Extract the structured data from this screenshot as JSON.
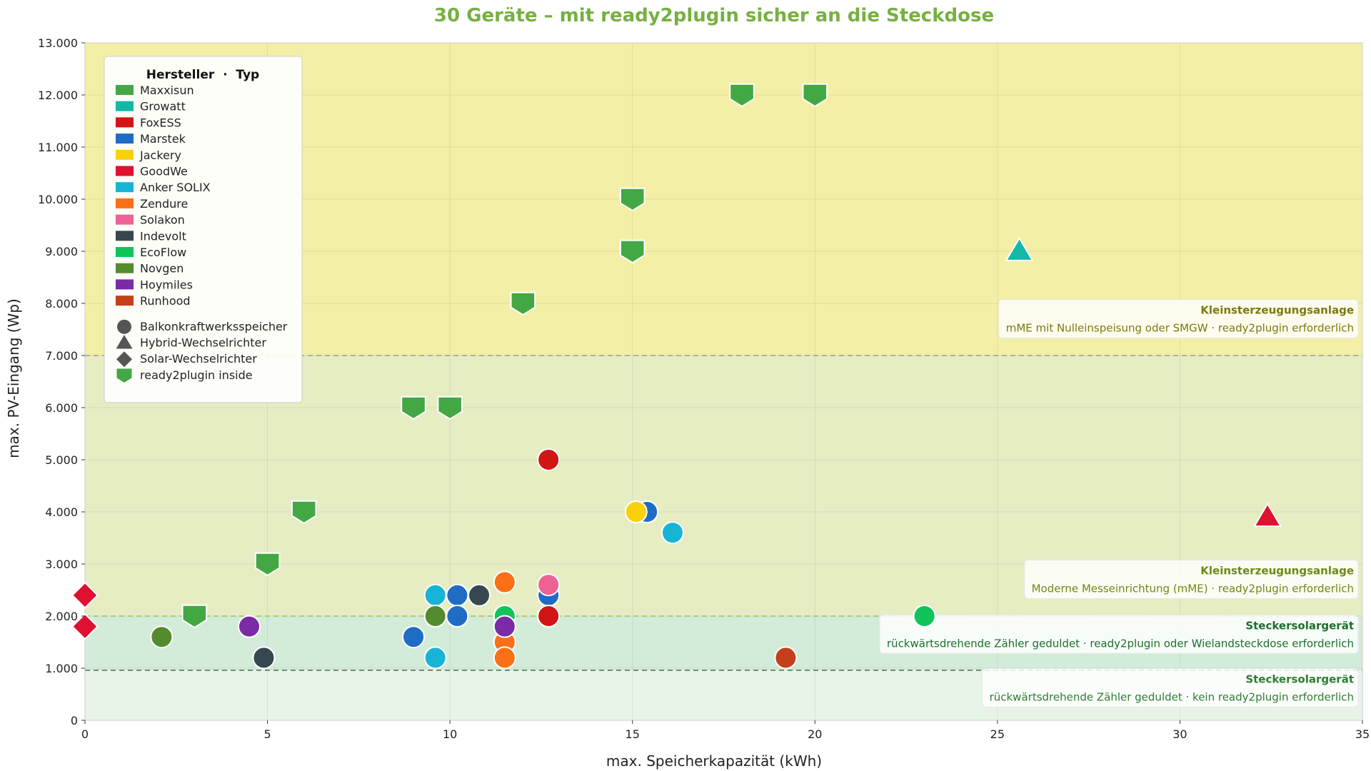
{
  "chart_data": {
    "type": "scatter",
    "title": "30 Geräte – mit ready2plugin sicher an die Steckdose",
    "xlabel": "max. Speicherkapazität (kWh)",
    "ylabel": "max. PV-Eingang (Wp)",
    "xlim": [
      0,
      35
    ],
    "ylim": [
      0,
      13000
    ],
    "xticks": [
      0,
      5,
      10,
      15,
      20,
      25,
      30,
      35
    ],
    "xtick_labels": [
      "0",
      "5",
      "10",
      "15",
      "20",
      "25",
      "30",
      "35"
    ],
    "yticks": [
      0,
      1000,
      2000,
      3000,
      4000,
      5000,
      6000,
      7000,
      8000,
      9000,
      10000,
      11000,
      12000,
      13000
    ],
    "ytick_labels": [
      "0",
      "1.000",
      "2.000",
      "3.000",
      "4.000",
      "5.000",
      "6.000",
      "7.000",
      "8.000",
      "9.000",
      "10.000",
      "11.000",
      "12.000",
      "13.000"
    ],
    "grid": true,
    "colors": {
      "title": "#76b041",
      "zone_top": "#f3efa6",
      "zone_upper": "#e6edc3",
      "zone_mid": "#d3ecd9",
      "zone_bottom": "#e8f4e8",
      "line_7000": "#999999",
      "line_2000": "#9cbf4f",
      "line_960": "#4d6b4d",
      "text_olive": "#7a7a0e",
      "text_green": "#2e7d32",
      "text_dark_green": "#1e6e2e"
    },
    "zones": [
      {
        "from": 7000,
        "to": 13000,
        "color": "#f3efa6"
      },
      {
        "from": 2000,
        "to": 7000,
        "color": "#e6edc3"
      },
      {
        "from": 960,
        "to": 2000,
        "color": "#d3ecd9"
      },
      {
        "from": 0,
        "to": 960,
        "color": "#e8f4e8"
      }
    ],
    "threshold_lines": [
      {
        "y": 7000,
        "color": "#999999"
      },
      {
        "y": 2000,
        "color": "#9cbf4f"
      },
      {
        "y": 960,
        "color": "#4d6b4d"
      }
    ],
    "annotations": [
      {
        "title": "Kleinsterzeugungsanlage",
        "text": "mME mit Nulleinspeisung oder SMGW · ready2plugin erforderlich",
        "anchor_y": 7800,
        "color": "#7a7a0e"
      },
      {
        "title": "Kleinsterzeugungsanlage",
        "text": "Moderne Messeinrichtung (mME) · ready2plugin erforderlich",
        "anchor_y": 2800,
        "color": "#6b8a14"
      },
      {
        "title": "Steckersolargerät",
        "text": "rückwärtsdrehende Zähler geduldet · ready2plugin oder Wielandsteckdose erforderlich",
        "anchor_y": 1750,
        "color": "#1e6e2e"
      },
      {
        "title": "Steckersolargerät",
        "text": "rückwärtsdrehende Zähler geduldet · kein ready2plugin erforderlich",
        "anchor_y": 720,
        "color": "#2e7d32"
      }
    ],
    "legend": {
      "title": "Hersteller  ·  Typ",
      "position": "top-left",
      "manufacturers": [
        {
          "name": "Maxxisun",
          "color": "#43a843"
        },
        {
          "name": "Growatt",
          "color": "#14b8a6"
        },
        {
          "name": "FoxESS",
          "color": "#d11414"
        },
        {
          "name": "Marstek",
          "color": "#1f6cc5"
        },
        {
          "name": "Jackery",
          "color": "#f8d10b"
        },
        {
          "name": "GoodWe",
          "color": "#e01030"
        },
        {
          "name": "Anker SOLIX",
          "color": "#18b4d6"
        },
        {
          "name": "Zendure",
          "color": "#fb7016"
        },
        {
          "name": "Solakon",
          "color": "#ee6194"
        },
        {
          "name": "Indevolt",
          "color": "#37474f"
        },
        {
          "name": "EcoFlow",
          "color": "#10c45a"
        },
        {
          "name": "Novgen",
          "color": "#558b2f"
        },
        {
          "name": "Hoymiles",
          "color": "#7b2ba6"
        },
        {
          "name": "Runhood",
          "color": "#c4401b"
        }
      ],
      "types": [
        {
          "name": "Balkonkraftwerksspeicher",
          "shape": "circle"
        },
        {
          "name": "Hybrid-Wechselrichter",
          "shape": "triangle"
        },
        {
          "name": "Solar-Wechselrichter",
          "shape": "diamond"
        },
        {
          "name": "ready2plugin inside",
          "shape": "shield"
        }
      ]
    },
    "points": [
      {
        "x": 3,
        "y": 2000,
        "maker": "Maxxisun",
        "shape": "shield"
      },
      {
        "x": 5,
        "y": 3000,
        "maker": "Maxxisun",
        "shape": "shield"
      },
      {
        "x": 6,
        "y": 4000,
        "maker": "Maxxisun",
        "shape": "shield"
      },
      {
        "x": 9,
        "y": 6000,
        "maker": "Maxxisun",
        "shape": "shield"
      },
      {
        "x": 10,
        "y": 6000,
        "maker": "Maxxisun",
        "shape": "shield"
      },
      {
        "x": 12,
        "y": 8000,
        "maker": "Maxxisun",
        "shape": "shield"
      },
      {
        "x": 15,
        "y": 9000,
        "maker": "Maxxisun",
        "shape": "shield"
      },
      {
        "x": 15,
        "y": 10000,
        "maker": "Maxxisun",
        "shape": "shield"
      },
      {
        "x": 18,
        "y": 12000,
        "maker": "Maxxisun",
        "shape": "shield"
      },
      {
        "x": 20,
        "y": 12000,
        "maker": "Maxxisun",
        "shape": "shield"
      },
      {
        "x": 25.6,
        "y": 9000,
        "maker": "Growatt",
        "shape": "triangle"
      },
      {
        "x": 32.4,
        "y": 3900,
        "maker": "GoodWe",
        "shape": "triangle"
      },
      {
        "x": 0,
        "y": 2400,
        "maker": "GoodWe",
        "shape": "diamond"
      },
      {
        "x": 0,
        "y": 1800,
        "maker": "GoodWe",
        "shape": "diamond"
      },
      {
        "x": 2.1,
        "y": 1600,
        "maker": "Novgen",
        "shape": "circle"
      },
      {
        "x": 4.5,
        "y": 1800,
        "maker": "Hoymiles",
        "shape": "circle"
      },
      {
        "x": 4.9,
        "y": 1200,
        "maker": "Indevolt",
        "shape": "circle"
      },
      {
        "x": 9,
        "y": 1600,
        "maker": "Marstek",
        "shape": "circle"
      },
      {
        "x": 9.6,
        "y": 2400,
        "maker": "Anker SOLIX",
        "shape": "circle"
      },
      {
        "x": 9.6,
        "y": 2000,
        "maker": "Novgen",
        "shape": "circle"
      },
      {
        "x": 9.6,
        "y": 1200,
        "maker": "Anker SOLIX",
        "shape": "circle"
      },
      {
        "x": 10.2,
        "y": 2400,
        "maker": "Marstek",
        "shape": "circle"
      },
      {
        "x": 10.2,
        "y": 2000,
        "maker": "Marstek",
        "shape": "circle"
      },
      {
        "x": 10.8,
        "y": 2400,
        "maker": "Indevolt",
        "shape": "circle"
      },
      {
        "x": 11.5,
        "y": 2650,
        "maker": "Zendure",
        "shape": "circle"
      },
      {
        "x": 11.5,
        "y": 2000,
        "maker": "EcoFlow",
        "shape": "circle"
      },
      {
        "x": 11.5,
        "y": 1500,
        "maker": "Zendure",
        "shape": "circle"
      },
      {
        "x": 11.5,
        "y": 1200,
        "maker": "Zendure",
        "shape": "circle"
      },
      {
        "x": 11.5,
        "y": 1800,
        "maker": "Hoymiles",
        "shape": "circle"
      },
      {
        "x": 12.7,
        "y": 5000,
        "maker": "FoxESS",
        "shape": "circle"
      },
      {
        "x": 12.7,
        "y": 2400,
        "maker": "Marstek",
        "shape": "circle"
      },
      {
        "x": 12.7,
        "y": 2600,
        "maker": "Solakon",
        "shape": "circle"
      },
      {
        "x": 12.7,
        "y": 2000,
        "maker": "FoxESS",
        "shape": "circle"
      },
      {
        "x": 15.4,
        "y": 4000,
        "maker": "Marstek",
        "shape": "circle"
      },
      {
        "x": 15.1,
        "y": 4000,
        "maker": "Jackery",
        "shape": "circle"
      },
      {
        "x": 16.1,
        "y": 3600,
        "maker": "Anker SOLIX",
        "shape": "circle"
      },
      {
        "x": 23,
        "y": 2000,
        "maker": "EcoFlow",
        "shape": "circle"
      },
      {
        "x": 19.2,
        "y": 1200,
        "maker": "Runhood",
        "shape": "circle"
      }
    ]
  }
}
